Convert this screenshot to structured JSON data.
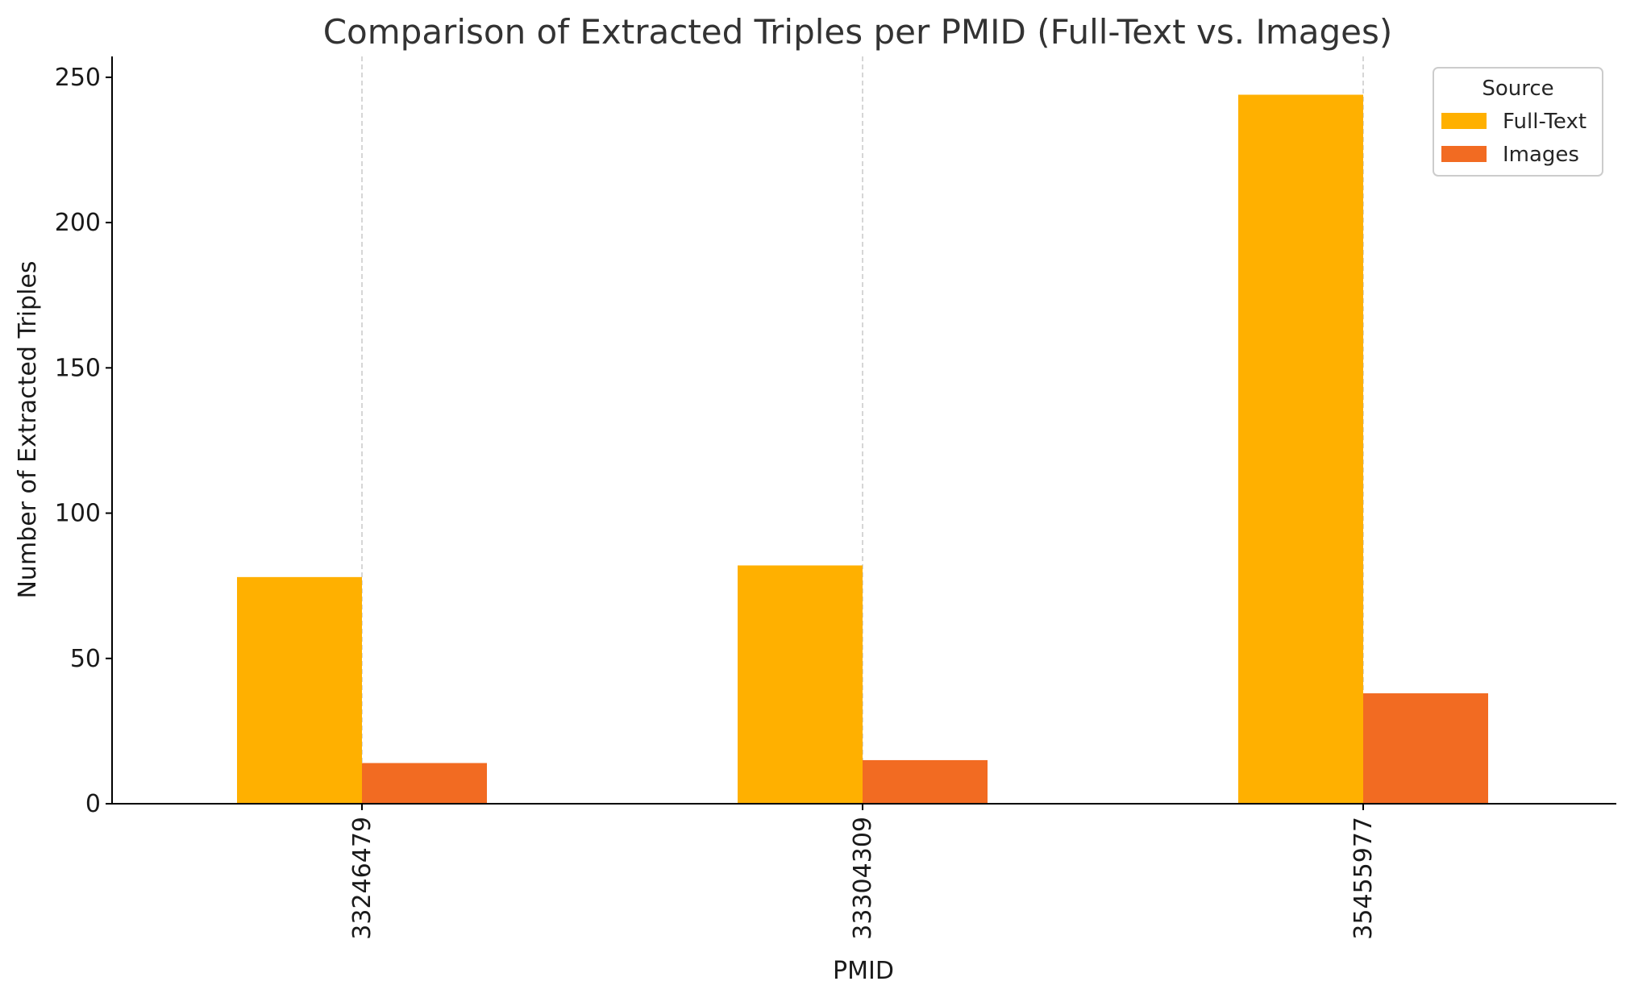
{
  "chart_data": {
    "type": "bar",
    "title": "Comparison of Extracted Triples per PMID (Full-Text vs. Images)",
    "xlabel": "PMID",
    "ylabel": "Number of Extracted Triples",
    "categories": [
      "33246479",
      "33304309",
      "35455977"
    ],
    "series": [
      {
        "name": "Full-Text",
        "values": [
          78,
          82,
          244
        ],
        "color": "#FFB000"
      },
      {
        "name": "Images",
        "values": [
          14,
          15,
          38
        ],
        "color": "#F26B22"
      }
    ],
    "ylim": [
      0,
      257
    ],
    "yticks": [
      0,
      50,
      100,
      150,
      200,
      250
    ],
    "grid": "vertical dashed at category centers",
    "legend": {
      "title": "Source",
      "position": "top-right"
    }
  }
}
